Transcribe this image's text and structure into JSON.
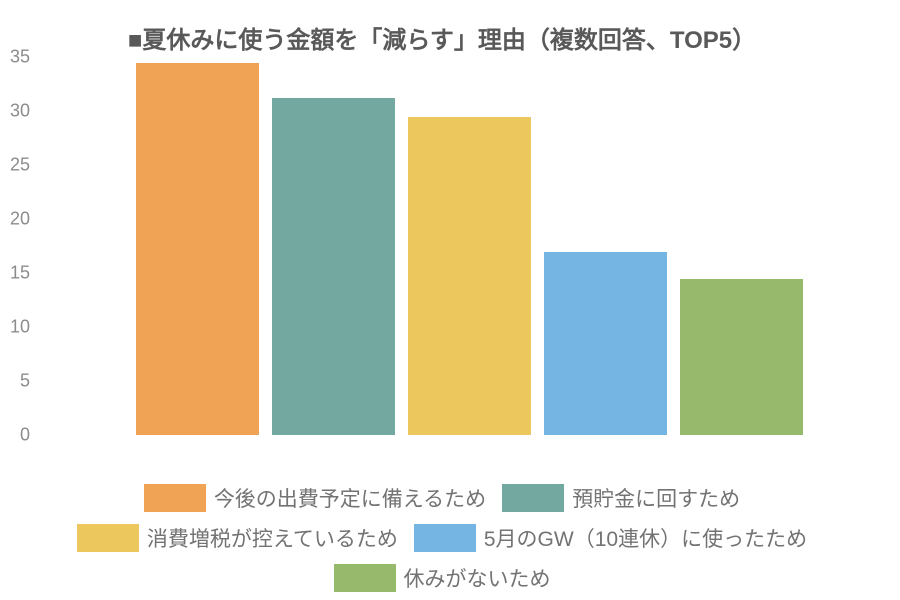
{
  "chart_data": {
    "type": "bar",
    "title": "■夏休みに使う金額を「減らす」理由（複数回答、TOP5）",
    "categories": [
      "今後の出費予定に備えるため",
      "預貯金に回すため",
      "消費増税が控えているため",
      "5月のGW（10連休）に使ったため",
      "休みがないため"
    ],
    "values": [
      34.4,
      31.2,
      29.4,
      16.9,
      14.4
    ],
    "colors": [
      "#F0A355",
      "#73A8A0",
      "#ECC75E",
      "#75B5E4",
      "#97B96B"
    ],
    "xlabel": "",
    "ylabel": "",
    "ylim": [
      0,
      35
    ],
    "yticks": [
      0,
      5,
      10,
      15,
      20,
      25,
      30,
      35
    ],
    "grid": false,
    "axis_lines": false,
    "legend_position": "bottom",
    "legend_rows": [
      [
        0,
        1
      ],
      [
        2,
        3
      ],
      [
        4
      ]
    ]
  }
}
